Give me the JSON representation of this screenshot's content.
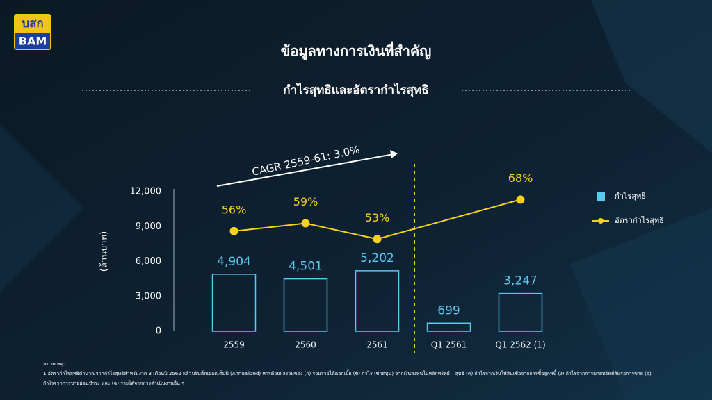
{
  "logo": {
    "top": "บสก",
    "bottom": "BAM"
  },
  "chart_data": {
    "type": "bar",
    "title": "ข้อมูลทางการเงินที่สำคัญ",
    "subtitle": "กำไรสุทธิและอัตรากำไรสุทธิ",
    "y_label": "(ล้านบาท)",
    "annotation": "CAGR 2559-61: 3.0%",
    "categories": [
      "2559",
      "2560",
      "2561",
      "Q1 2561",
      "Q1 2562 (1)"
    ],
    "ylim": [
      0,
      12000
    ],
    "yticks": [
      0,
      {
        "value": 3000,
        "label": "3,000"
      },
      {
        "value": 6000,
        "label": "6,000"
      },
      {
        "value": 9000,
        "label": "9,000"
      },
      {
        "value": 12000,
        "label": "12,000"
      }
    ],
    "y2lim": [
      18,
      71
    ],
    "series": [
      {
        "name": "กำไรสุทธิ",
        "type": "bar",
        "color": "#5bc8f0",
        "values": [
          4904,
          4501,
          5202,
          699,
          3247
        ],
        "value_labels": [
          "4,904",
          "4,501",
          "5,202",
          "699",
          "3,247"
        ]
      },
      {
        "name": "อัตรากำไรสุทธิ",
        "type": "line",
        "axis": "y2",
        "color": "#f2d21b",
        "values": [
          56,
          59,
          53,
          null,
          68
        ],
        "value_labels": [
          "56%",
          "59%",
          "53%",
          null,
          "68%"
        ]
      }
    ],
    "notes": [
      "หมายเหตุ:",
      "1 อัตรากำไรสุทธิคำนวณจากกำไรสุทธิสำหรับงวด 3 เดือนปี 2562 แล้วปรับเป็นยอดเต็มปี (Annualized) หารด้วยผลรวมของ (ก) รวมรายได้ดอกเบี้ย (ข) กำไร (ขาดทุน) จากเงินลงทุนในหลักทรัพย์ – สุทธิ (ค) กำไรจากเงินให้สินเชื่อจากการซื้อลูกหนี้ (ง) กำไรจากการขายทรัพย์สินรอการขาย (จ)",
      "กำไรจากการขายผ่อนชำระ และ (ฉ) รายได้จากการดำเนินงานอื่น ๆ"
    ]
  }
}
